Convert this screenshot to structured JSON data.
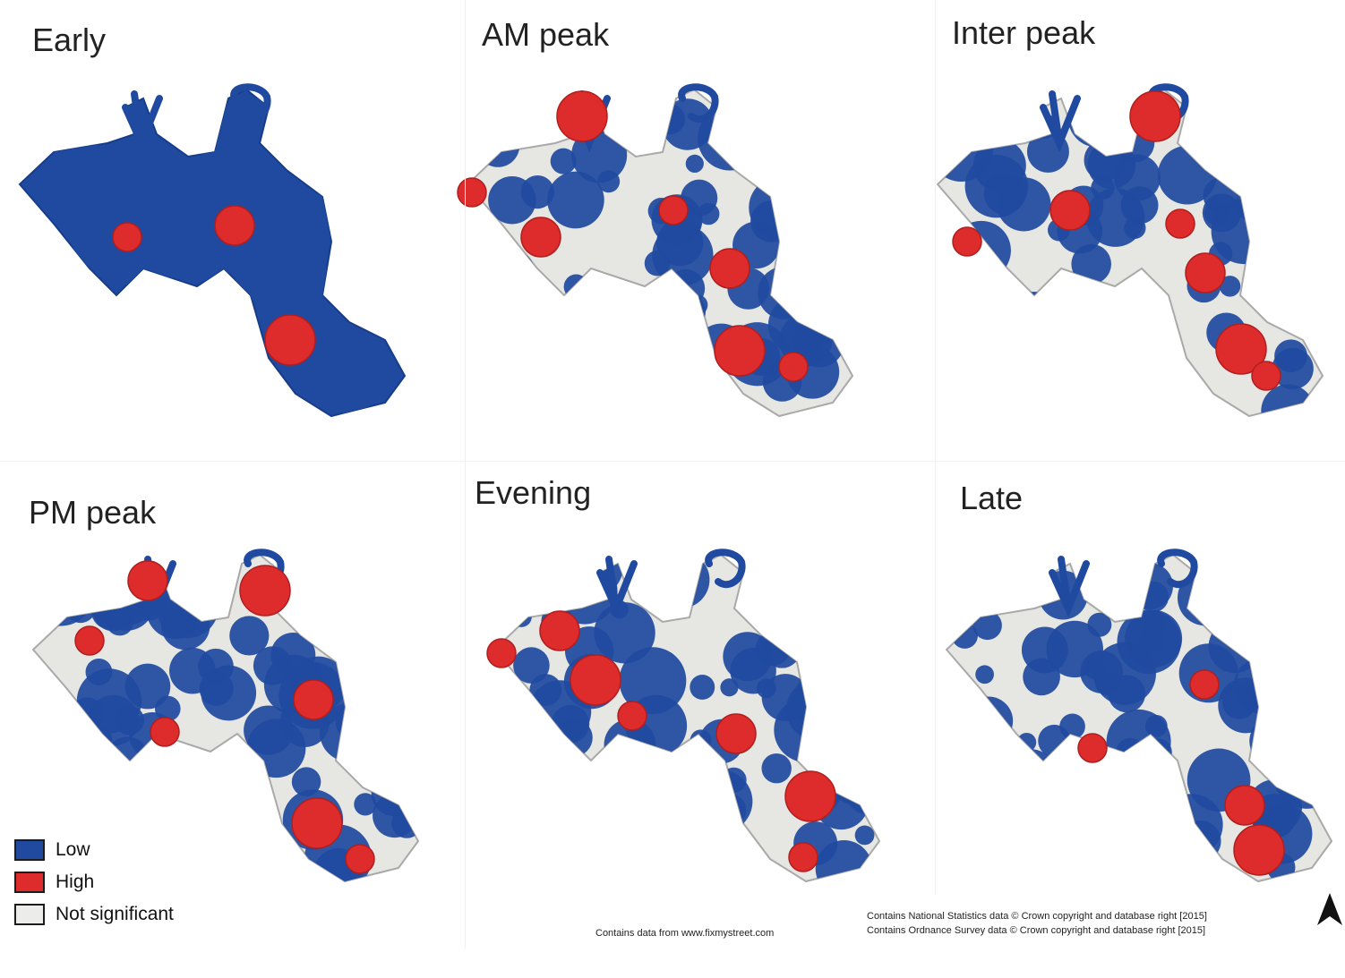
{
  "panels": [
    {
      "id": "early",
      "title": "Early",
      "layers": [
        "blue",
        "red"
      ],
      "red_hotspots": [
        [
          142,
          265
        ],
        [
          262,
          252
        ],
        [
          324,
          380
        ]
      ]
    },
    {
      "id": "am",
      "title": "AM peak",
      "layers": [
        "blue",
        "gray",
        "red"
      ],
      "red_hotspots": [
        [
          527,
          215
        ],
        [
          604,
          265
        ],
        [
          650,
          130
        ],
        [
          752,
          235
        ],
        [
          815,
          300
        ],
        [
          826,
          392
        ],
        [
          886,
          410
        ]
      ]
    },
    {
      "id": "inter",
      "title": "Inter peak",
      "layers": [
        "blue",
        "gray",
        "red"
      ],
      "red_hotspots": [
        [
          1080,
          270
        ],
        [
          1195,
          235
        ],
        [
          1290,
          130
        ],
        [
          1318,
          250
        ],
        [
          1346,
          305
        ],
        [
          1386,
          390
        ],
        [
          1414,
          420
        ]
      ]
    },
    {
      "id": "pm",
      "title": "PM peak",
      "layers": [
        "blue",
        "gray",
        "red"
      ],
      "red_hotspots": [
        [
          100,
          716
        ],
        [
          165,
          649
        ],
        [
          296,
          660
        ],
        [
          184,
          818
        ],
        [
          350,
          782
        ],
        [
          354,
          920
        ],
        [
          402,
          960
        ]
      ]
    },
    {
      "id": "evening",
      "title": "Evening",
      "layers": [
        "blue",
        "gray",
        "red"
      ],
      "red_hotspots": [
        [
          560,
          730
        ],
        [
          625,
          705
        ],
        [
          665,
          760
        ],
        [
          706,
          800
        ],
        [
          822,
          820
        ],
        [
          905,
          890
        ],
        [
          897,
          958
        ]
      ]
    },
    {
      "id": "late",
      "title": "Late",
      "layers": [
        "blue",
        "gray",
        "red"
      ],
      "red_hotspots": [
        [
          1345,
          765
        ],
        [
          1390,
          900
        ],
        [
          1406,
          950
        ],
        [
          1220,
          836
        ]
      ]
    }
  ],
  "legend": {
    "items": [
      {
        "label": "Low",
        "color": "#1f4aa0"
      },
      {
        "label": "High",
        "color": "#de2b2b"
      },
      {
        "label": "Not significant",
        "color": "#ececea"
      }
    ]
  },
  "credits": {
    "fixmystreet": "Contains data from www.fixmystreet.com",
    "ons": "Contains National Statistics data © Crown copyright and database right [2015]",
    "os": "Contains Ordnance Survey data © Crown copyright and database right [2015]"
  },
  "colors": {
    "low": "#1f4aa0",
    "high": "#de2b2b",
    "not_significant": "#e6e6e3",
    "road_edge": "#a9a9a9"
  },
  "north_arrow_icon": "north-arrow-icon"
}
